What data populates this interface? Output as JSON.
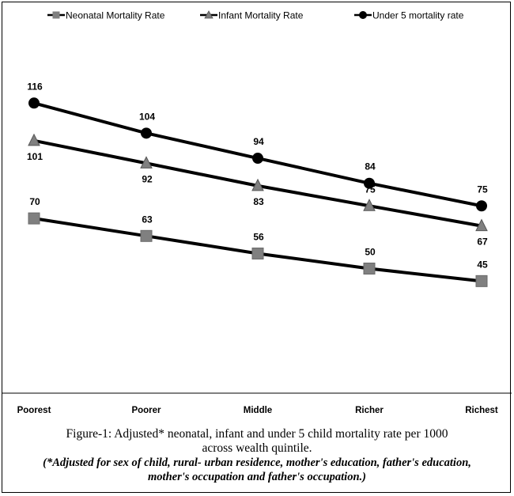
{
  "chart_data": {
    "type": "line",
    "title": "",
    "xlabel": "",
    "ylabel": "",
    "categories": [
      "Poorest",
      "Poorer",
      "Middle",
      "Richer",
      "Richest"
    ],
    "ylim": [
      0,
      140
    ],
    "grid": false,
    "legend": "top",
    "series": [
      {
        "name": "Neonatal Mortality Rate",
        "marker": "square",
        "color": "#808080",
        "values": [
          70,
          63,
          56,
          50,
          45
        ]
      },
      {
        "name": "Infant Mortality Rate",
        "marker": "triangle",
        "color": "#808080",
        "values": [
          101,
          92,
          83,
          75,
          67
        ]
      },
      {
        "name": "Under 5 mortality rate",
        "marker": "circle",
        "color": "#000000",
        "values": [
          116,
          104,
          94,
          84,
          75
        ]
      }
    ],
    "data_label_placement": [
      "above",
      "mixed",
      "above"
    ]
  },
  "caption": {
    "line1": "Figure-1: Adjusted* neonatal, infant and under 5 child mortality rate per 1000",
    "line2": "across wealth quintile.",
    "note1": "(*Adjusted for sex of child, rural- urban residence, mother's education, father's education,",
    "note2": "mother's occupation and father's occupation.)"
  }
}
